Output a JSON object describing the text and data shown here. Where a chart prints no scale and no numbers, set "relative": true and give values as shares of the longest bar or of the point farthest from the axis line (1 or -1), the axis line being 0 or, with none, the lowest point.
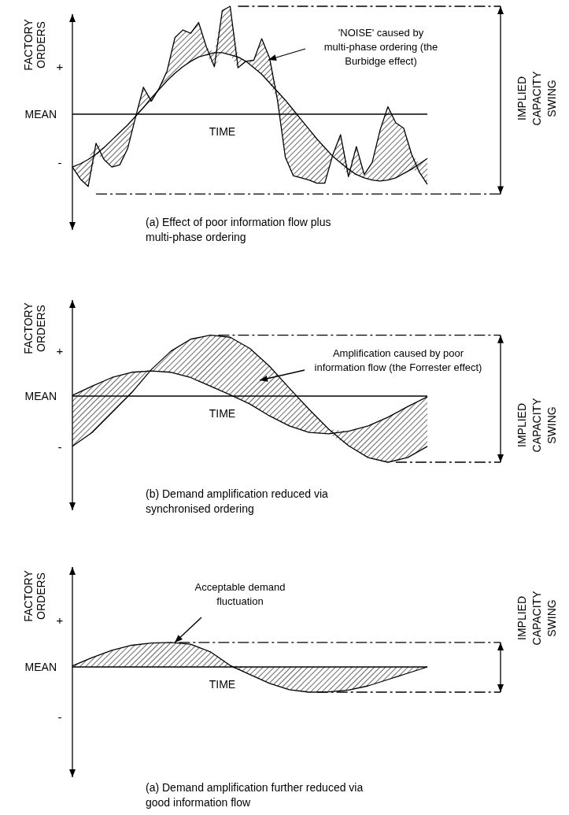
{
  "chart_data": [
    {
      "type": "line",
      "title": "(a)  Effect of poor information flow plus multi-phase ordering",
      "xlabel": "TIME",
      "ylabel": "FACTORY ORDERS",
      "relative": true,
      "line_style": "solid",
      "categories": [
        null,
        null,
        null,
        null,
        null,
        null,
        null,
        null,
        null,
        null,
        null,
        null,
        null,
        null,
        null,
        null,
        null,
        null,
        null,
        null,
        null,
        null,
        null,
        null,
        null,
        null,
        null,
        null,
        null,
        null,
        null,
        null,
        null,
        null,
        null,
        null,
        null,
        null,
        null,
        null,
        null,
        null,
        null,
        null,
        null,
        null
      ],
      "series": [
        {
          "color": "#000000",
          "values": [
            -0.49,
            -0.6,
            -0.67,
            -0.27,
            -0.42,
            -0.49,
            -0.47,
            -0.32,
            -0.03,
            0.25,
            0.12,
            0.24,
            0.4,
            0.71,
            0.78,
            0.75,
            0.85,
            0.62,
            0.44,
            0.96,
            1.0,
            0.43,
            0.49,
            0.5,
            0.7,
            0.52,
            0.13,
            -0.4,
            -0.57,
            -0.59,
            -0.61,
            -0.64,
            -0.64,
            -0.38,
            -0.19,
            -0.58,
            -0.3,
            -0.56,
            -0.45,
            -0.15,
            0.07,
            -0.08,
            -0.13,
            -0.37,
            -0.54,
            -0.65
          ],
          "lower": [
            -0.49,
            -0.6,
            -0.67,
            -0.37,
            -0.42,
            -0.49,
            -0.47,
            -0.32,
            -0.03,
            0.06,
            0.12,
            0.23,
            0.31,
            0.38,
            0.44,
            0.49,
            0.53,
            0.55,
            0.44,
            0.57,
            0.55,
            0.43,
            0.49,
            0.43,
            0.37,
            0.29,
            0.13,
            -0.4,
            -0.57,
            -0.59,
            -0.61,
            -0.64,
            -0.64,
            -0.39,
            -0.45,
            -0.58,
            -0.56,
            -0.59,
            -0.61,
            -0.62,
            -0.61,
            -0.59,
            -0.55,
            -0.51,
            -0.54,
            -0.65
          ],
          "upper": [
            -0.49,
            -0.46,
            -0.42,
            -0.27,
            -0.31,
            -0.24,
            -0.17,
            -0.1,
            -0.02,
            0.25,
            0.15,
            0.24,
            0.4,
            0.71,
            0.78,
            0.75,
            0.85,
            0.62,
            0.57,
            0.96,
            1.0,
            0.53,
            0.49,
            0.5,
            0.7,
            0.52,
            0.21,
            0.13,
            0.04,
            -0.05,
            -0.14,
            -0.23,
            -0.31,
            -0.38,
            -0.19,
            -0.51,
            -0.3,
            -0.56,
            -0.45,
            -0.15,
            0.07,
            -0.08,
            -0.13,
            -0.37,
            -0.46,
            -0.41
          ]
        },
        {
          "color": "#000000",
          "values": [
            -0.49,
            -0.46,
            -0.42,
            -0.37,
            -0.31,
            -0.24,
            -0.17,
            -0.1,
            -0.02,
            0.06,
            0.15,
            0.23,
            0.31,
            0.38,
            0.44,
            0.49,
            0.53,
            0.55,
            0.57,
            0.57,
            0.55,
            0.53,
            0.49,
            0.43,
            0.37,
            0.29,
            0.21,
            0.13,
            0.04,
            -0.05,
            -0.14,
            -0.23,
            -0.31,
            -0.39,
            -0.45,
            -0.51,
            -0.56,
            -0.59,
            -0.61,
            -0.62,
            -0.61,
            -0.59,
            -0.55,
            -0.51,
            -0.46,
            -0.41
          ]
        }
      ],
      "ref_lines": [
        {
          "axis": "y",
          "value": 0,
          "label": "MEAN",
          "line_style": "solid"
        },
        {
          "axis": "y",
          "value": 1.0,
          "label": null,
          "line_style": "dashed"
        },
        {
          "axis": "y",
          "value": -0.74,
          "label": null,
          "line_style": "dashed"
        }
      ],
      "annotations": [
        "'NOISE' caused by multi-phase ordering (the Burbidge effect)",
        "+",
        "-",
        "IMPLIED CAPACITY SWING"
      ]
    },
    {
      "type": "line",
      "title": "(b)  Demand amplification reduced via synchronised ordering",
      "xlabel": "TIME",
      "ylabel": "FACTORY ORDERS",
      "relative": true,
      "line_style": "solid",
      "categories": [
        null,
        null,
        null,
        null,
        null,
        null,
        null,
        null,
        null,
        null,
        null,
        null,
        null,
        null,
        null,
        null,
        null,
        null,
        null
      ],
      "series": [
        {
          "color": "#000000",
          "values": [
            0.01,
            0.15,
            0.28,
            0.36,
            0.38,
            0.36,
            0.28,
            0.15,
            0.02,
            -0.12,
            -0.3,
            -0.45,
            -0.55,
            -0.57,
            -0.53,
            -0.45,
            -0.32,
            -0.16,
            -0.01
          ],
          "lower": [
            -0.76,
            -0.55,
            -0.25,
            0.05,
            0.38,
            0.36,
            0.28,
            0.15,
            0.02,
            -0.12,
            -0.3,
            -0.45,
            -0.55,
            -0.57,
            -0.75,
            -0.93,
            -1.0,
            -0.93,
            -0.76
          ],
          "upper": [
            0.01,
            0.15,
            0.28,
            0.36,
            0.4,
            0.68,
            0.86,
            0.92,
            0.89,
            0.72,
            0.45,
            0.12,
            -0.2,
            -0.5,
            -0.53,
            -0.45,
            -0.32,
            -0.16,
            -0.01
          ]
        },
        {
          "color": "#000000",
          "values": [
            -0.76,
            -0.55,
            -0.25,
            0.05,
            0.4,
            0.68,
            0.86,
            0.92,
            0.89,
            0.72,
            0.45,
            0.12,
            -0.2,
            -0.5,
            -0.75,
            -0.93,
            -1.0,
            -0.93,
            -0.76
          ]
        }
      ],
      "ref_lines": [
        {
          "axis": "y",
          "value": 0,
          "label": "MEAN",
          "line_style": "solid"
        },
        {
          "axis": "y",
          "value": 0.92,
          "label": null,
          "line_style": "dashed"
        },
        {
          "axis": "y",
          "value": -1.0,
          "label": null,
          "line_style": "dashed"
        }
      ],
      "annotations": [
        "Amplification caused by poor information flow (the Forrester effect)",
        "+",
        "-",
        "IMPLIED CAPACITY SWING"
      ]
    },
    {
      "type": "line",
      "title": "(a)  Demand amplification further reduced via good information flow",
      "xlabel": "TIME",
      "ylabel": "FACTORY ORDERS",
      "relative": true,
      "line_style": "solid",
      "categories": [
        null,
        null,
        null,
        null,
        null,
        null,
        null,
        null,
        null,
        null,
        null,
        null,
        null,
        null,
        null,
        null,
        null,
        null,
        null
      ],
      "series": [
        {
          "color": "#000000",
          "values": [
            0.04,
            0.37,
            0.66,
            0.86,
            0.95,
            0.97,
            0.9,
            0.6,
            0.06,
            -0.3,
            -0.65,
            -0.9,
            -1.0,
            -0.99,
            -0.92,
            -0.75,
            -0.5,
            -0.25,
            0
          ],
          "lower": [
            0,
            0,
            0,
            0,
            0,
            0,
            0,
            0,
            0,
            -0.3,
            -0.65,
            -0.9,
            -1.0,
            -0.99,
            -0.92,
            -0.75,
            -0.5,
            -0.25,
            0
          ],
          "upper": [
            0.04,
            0.37,
            0.66,
            0.86,
            0.95,
            0.97,
            0.9,
            0.6,
            0.06,
            0,
            0,
            0,
            0,
            0,
            0,
            0,
            0,
            0,
            0
          ]
        }
      ],
      "ref_lines": [
        {
          "axis": "y",
          "value": 0,
          "label": "MEAN",
          "line_style": "solid"
        },
        {
          "axis": "y",
          "value": 0.97,
          "label": null,
          "line_style": "dashed"
        },
        {
          "axis": "y",
          "value": -1.0,
          "label": null,
          "line_style": "dashed"
        }
      ],
      "annotations": [
        "Acceptable demand fluctuation",
        "+",
        "-",
        "IMPLIED CAPACITY SWING"
      ]
    }
  ]
}
